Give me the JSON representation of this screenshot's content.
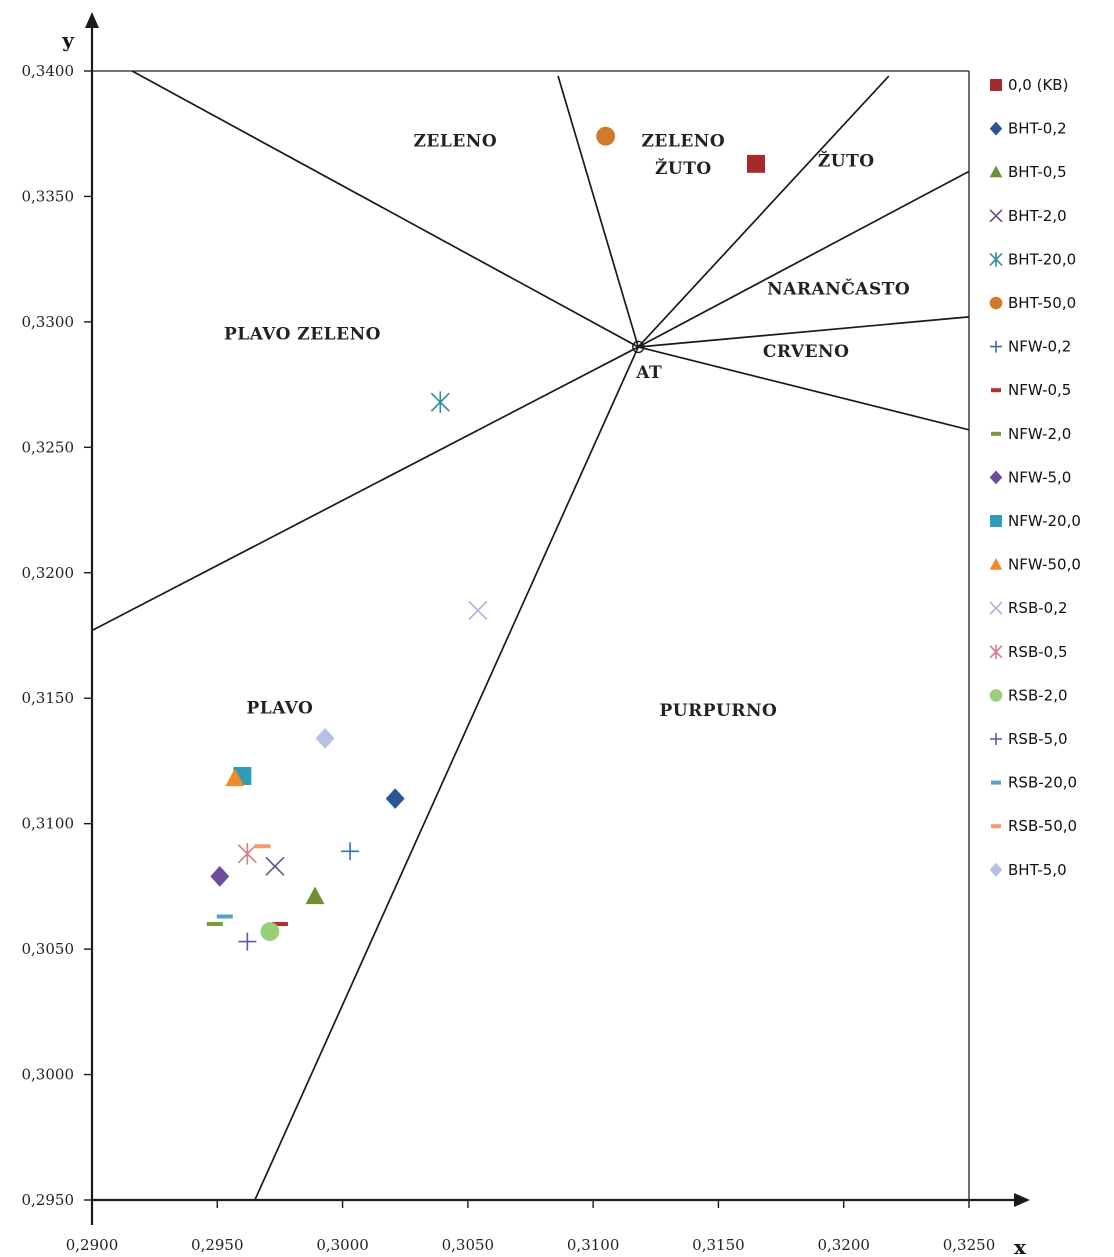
{
  "chart_data": {
    "type": "scatter",
    "title": "",
    "xlabel": "x",
    "ylabel": "y",
    "xlim": [
      0.29,
      0.325
    ],
    "ylim": [
      0.295,
      0.34
    ],
    "x_ticks": [
      "0,2900",
      "0,2950",
      "0,3000",
      "0,3050",
      "0,3100",
      "0,3150",
      "0,3200",
      "0,3250"
    ],
    "y_ticks": [
      "0,2950",
      "0,3000",
      "0,3050",
      "0,3100",
      "0,3150",
      "0,3200",
      "0,3250",
      "0,3300",
      "0,3350",
      "0,3400"
    ],
    "x_tick_values": [
      0.29,
      0.295,
      0.3,
      0.305,
      0.31,
      0.315,
      0.32,
      0.325
    ],
    "y_tick_values": [
      0.295,
      0.3,
      0.305,
      0.31,
      0.315,
      0.32,
      0.325,
      0.33,
      0.335,
      0.34
    ],
    "grid": false,
    "legend_position": "right",
    "achromatic_point": {
      "label": "AT",
      "x": 0.3118,
      "y": 0.329
    },
    "boundary_lines": [
      {
        "from": [
          0.3118,
          0.329
        ],
        "to": [
          0.2916,
          0.34
        ]
      },
      {
        "from": [
          0.3118,
          0.329
        ],
        "to": [
          0.3086,
          0.3398
        ]
      },
      {
        "from": [
          0.3118,
          0.329
        ],
        "to": [
          0.3218,
          0.3398
        ]
      },
      {
        "from": [
          0.3118,
          0.329
        ],
        "to": [
          0.325,
          0.336
        ]
      },
      {
        "from": [
          0.3118,
          0.329
        ],
        "to": [
          0.325,
          0.3302
        ]
      },
      {
        "from": [
          0.3118,
          0.329
        ],
        "to": [
          0.325,
          0.3257
        ]
      },
      {
        "from": [
          0.3118,
          0.329
        ],
        "to": [
          0.2965,
          0.295
        ]
      },
      {
        "from": [
          0.3118,
          0.329
        ],
        "to": [
          0.29,
          0.3177
        ]
      }
    ],
    "regions": [
      {
        "label": "ZELENO",
        "x": 0.3045,
        "y": 0.337
      },
      {
        "label": "ZELENO",
        "x": 0.3136,
        "y": 0.337
      },
      {
        "label": "ŽUTO",
        "x": 0.3136,
        "y": 0.3359
      },
      {
        "label": "ŽUTO",
        "x": 0.3201,
        "y": 0.3362
      },
      {
        "label": "NARANČASTO",
        "x": 0.3198,
        "y": 0.3311
      },
      {
        "label": "CRVENO",
        "x": 0.3185,
        "y": 0.3286
      },
      {
        "label": "PLAVO ZELENO",
        "x": 0.2984,
        "y": 0.3293
      },
      {
        "label": "PLAVO",
        "x": 0.2975,
        "y": 0.3144
      },
      {
        "label": "PURPURNO",
        "x": 0.315,
        "y": 0.3143
      }
    ],
    "series": [
      {
        "name": "0,0 (KB)",
        "marker": "square",
        "color": "#a52a2a",
        "points": [
          [
            0.3165,
            0.3363
          ]
        ]
      },
      {
        "name": "BHT-0,2",
        "marker": "diamond",
        "color": "#2b5592",
        "points": [
          [
            0.3021,
            0.311
          ]
        ]
      },
      {
        "name": "BHT-0,5",
        "marker": "triangle",
        "color": "#6e8f34",
        "points": [
          [
            0.2989,
            0.3071
          ]
        ]
      },
      {
        "name": "BHT-2,0",
        "marker": "x",
        "color": "#6a4f86",
        "points": [
          [
            0.2973,
            0.3083
          ]
        ]
      },
      {
        "name": "BHT-20,0",
        "marker": "asterisk",
        "color": "#2f8e9f",
        "points": [
          [
            0.3039,
            0.3268
          ]
        ]
      },
      {
        "name": "BHT-50,0",
        "marker": "circle",
        "color": "#d07a2b",
        "points": [
          [
            0.3105,
            0.3374
          ]
        ]
      },
      {
        "name": "NFW-0,2",
        "marker": "plus",
        "color": "#3b6fb0",
        "points": [
          [
            0.3003,
            0.3089
          ]
        ]
      },
      {
        "name": "NFW-0,5",
        "marker": "dash",
        "color": "#b03030",
        "points": [
          [
            0.2975,
            0.306
          ]
        ]
      },
      {
        "name": "NFW-2,0",
        "marker": "dash",
        "color": "#7a9b3a",
        "points": [
          [
            0.2949,
            0.306
          ]
        ]
      },
      {
        "name": "NFW-5,0",
        "marker": "diamond",
        "color": "#6a4c9c",
        "points": [
          [
            0.2951,
            0.3079
          ]
        ]
      },
      {
        "name": "NFW-20,0",
        "marker": "square",
        "color": "#2f9bb7",
        "points": [
          [
            0.296,
            0.3119
          ]
        ]
      },
      {
        "name": "NFW-50,0",
        "marker": "triangle",
        "color": "#f08a2a",
        "points": [
          [
            0.2957,
            0.3118
          ]
        ]
      },
      {
        "name": "RSB-0,2",
        "marker": "x",
        "color": "#a8b4dc",
        "points": [
          [
            0.3054,
            0.3185
          ]
        ]
      },
      {
        "name": "RSB-0,5",
        "marker": "asterisk",
        "color": "#d77a8a",
        "points": [
          [
            0.2962,
            0.3088
          ]
        ]
      },
      {
        "name": "RSB-2,0",
        "marker": "circle",
        "color": "#9acd7c",
        "points": [
          [
            0.2971,
            0.3057
          ]
        ]
      },
      {
        "name": "RSB-5,0",
        "marker": "plus",
        "color": "#5d58a6",
        "points": [
          [
            0.2962,
            0.3053
          ]
        ]
      },
      {
        "name": "RSB-20,0",
        "marker": "dash",
        "color": "#57a3c2",
        "points": [
          [
            0.2953,
            0.3063
          ]
        ]
      },
      {
        "name": "RSB-50,0",
        "marker": "dash",
        "color": "#f29a6a",
        "points": [
          [
            0.2968,
            0.3091
          ]
        ]
      },
      {
        "name": "BHT-5,0",
        "marker": "diamond",
        "color": "#b6c0e2",
        "points": [
          [
            0.2993,
            0.3134
          ]
        ]
      }
    ]
  }
}
